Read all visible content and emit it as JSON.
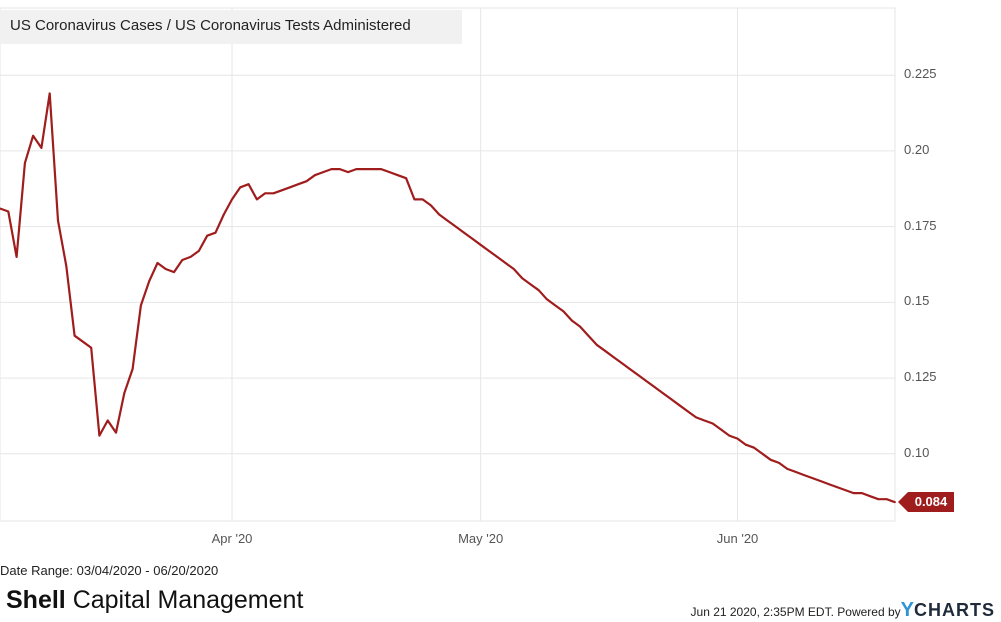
{
  "chart_data": {
    "type": "line",
    "title": "US Coronavirus Cases / US Coronavirus Tests Administered",
    "series": [
      {
        "name": "US Coronavirus Cases / US Coronavirus Tests Administered",
        "color": "#a01d1d",
        "points": [
          [
            "2020-03-04",
            0.181
          ],
          [
            "2020-03-05",
            0.18
          ],
          [
            "2020-03-06",
            0.165
          ],
          [
            "2020-03-07",
            0.196
          ],
          [
            "2020-03-08",
            0.205
          ],
          [
            "2020-03-09",
            0.201
          ],
          [
            "2020-03-10",
            0.219
          ],
          [
            "2020-03-11",
            0.177
          ],
          [
            "2020-03-12",
            0.162
          ],
          [
            "2020-03-13",
            0.139
          ],
          [
            "2020-03-14",
            0.137
          ],
          [
            "2020-03-15",
            0.135
          ],
          [
            "2020-03-16",
            0.106
          ],
          [
            "2020-03-17",
            0.111
          ],
          [
            "2020-03-18",
            0.107
          ],
          [
            "2020-03-19",
            0.12
          ],
          [
            "2020-03-20",
            0.128
          ],
          [
            "2020-03-21",
            0.149
          ],
          [
            "2020-03-22",
            0.157
          ],
          [
            "2020-03-23",
            0.163
          ],
          [
            "2020-03-24",
            0.161
          ],
          [
            "2020-03-25",
            0.16
          ],
          [
            "2020-03-26",
            0.164
          ],
          [
            "2020-03-27",
            0.165
          ],
          [
            "2020-03-28",
            0.167
          ],
          [
            "2020-03-29",
            0.172
          ],
          [
            "2020-03-30",
            0.173
          ],
          [
            "2020-03-31",
            0.179
          ],
          [
            "2020-04-01",
            0.184
          ],
          [
            "2020-04-02",
            0.188
          ],
          [
            "2020-04-03",
            0.189
          ],
          [
            "2020-04-04",
            0.184
          ],
          [
            "2020-04-05",
            0.186
          ],
          [
            "2020-04-06",
            0.186
          ],
          [
            "2020-04-07",
            0.187
          ],
          [
            "2020-04-08",
            0.188
          ],
          [
            "2020-04-09",
            0.189
          ],
          [
            "2020-04-10",
            0.19
          ],
          [
            "2020-04-11",
            0.192
          ],
          [
            "2020-04-12",
            0.193
          ],
          [
            "2020-04-13",
            0.194
          ],
          [
            "2020-04-14",
            0.194
          ],
          [
            "2020-04-15",
            0.193
          ],
          [
            "2020-04-16",
            0.194
          ],
          [
            "2020-04-17",
            0.194
          ],
          [
            "2020-04-18",
            0.194
          ],
          [
            "2020-04-19",
            0.194
          ],
          [
            "2020-04-20",
            0.193
          ],
          [
            "2020-04-21",
            0.192
          ],
          [
            "2020-04-22",
            0.191
          ],
          [
            "2020-04-23",
            0.184
          ],
          [
            "2020-04-24",
            0.184
          ],
          [
            "2020-04-25",
            0.182
          ],
          [
            "2020-04-26",
            0.179
          ],
          [
            "2020-04-27",
            0.177
          ],
          [
            "2020-04-28",
            0.175
          ],
          [
            "2020-04-29",
            0.173
          ],
          [
            "2020-04-30",
            0.171
          ],
          [
            "2020-05-01",
            0.169
          ],
          [
            "2020-05-02",
            0.167
          ],
          [
            "2020-05-03",
            0.165
          ],
          [
            "2020-05-04",
            0.163
          ],
          [
            "2020-05-05",
            0.161
          ],
          [
            "2020-05-06",
            0.158
          ],
          [
            "2020-05-07",
            0.156
          ],
          [
            "2020-05-08",
            0.154
          ],
          [
            "2020-05-09",
            0.151
          ],
          [
            "2020-05-10",
            0.149
          ],
          [
            "2020-05-11",
            0.147
          ],
          [
            "2020-05-12",
            0.144
          ],
          [
            "2020-05-13",
            0.142
          ],
          [
            "2020-05-14",
            0.139
          ],
          [
            "2020-05-15",
            0.136
          ],
          [
            "2020-05-16",
            0.134
          ],
          [
            "2020-05-17",
            0.132
          ],
          [
            "2020-05-18",
            0.13
          ],
          [
            "2020-05-19",
            0.128
          ],
          [
            "2020-05-20",
            0.126
          ],
          [
            "2020-05-21",
            0.124
          ],
          [
            "2020-05-22",
            0.122
          ],
          [
            "2020-05-23",
            0.12
          ],
          [
            "2020-05-24",
            0.118
          ],
          [
            "2020-05-25",
            0.116
          ],
          [
            "2020-05-26",
            0.114
          ],
          [
            "2020-05-27",
            0.112
          ],
          [
            "2020-05-28",
            0.111
          ],
          [
            "2020-05-29",
            0.11
          ],
          [
            "2020-05-30",
            0.108
          ],
          [
            "2020-05-31",
            0.106
          ],
          [
            "2020-06-01",
            0.105
          ],
          [
            "2020-06-02",
            0.103
          ],
          [
            "2020-06-03",
            0.102
          ],
          [
            "2020-06-04",
            0.1
          ],
          [
            "2020-06-05",
            0.098
          ],
          [
            "2020-06-06",
            0.097
          ],
          [
            "2020-06-07",
            0.095
          ],
          [
            "2020-06-08",
            0.094
          ],
          [
            "2020-06-09",
            0.093
          ],
          [
            "2020-06-10",
            0.092
          ],
          [
            "2020-06-11",
            0.091
          ],
          [
            "2020-06-12",
            0.09
          ],
          [
            "2020-06-13",
            0.089
          ],
          [
            "2020-06-14",
            0.088
          ],
          [
            "2020-06-15",
            0.087
          ],
          [
            "2020-06-16",
            0.087
          ],
          [
            "2020-06-17",
            0.086
          ],
          [
            "2020-06-18",
            0.085
          ],
          [
            "2020-06-19",
            0.085
          ],
          [
            "2020-06-20",
            0.084
          ]
        ]
      }
    ],
    "x_ticks": [
      {
        "date": "2020-04-01",
        "label": "Apr '20"
      },
      {
        "date": "2020-05-01",
        "label": "May '20"
      },
      {
        "date": "2020-06-01",
        "label": "Jun '20"
      }
    ],
    "x_range": [
      "2020-03-04",
      "2020-06-20"
    ],
    "y_ticks": [
      {
        "value": 0.1,
        "label": "0.10"
      },
      {
        "value": 0.125,
        "label": "0.125"
      },
      {
        "value": 0.15,
        "label": "0.15"
      },
      {
        "value": 0.175,
        "label": "0.175"
      },
      {
        "value": 0.2,
        "label": "0.20"
      },
      {
        "value": 0.225,
        "label": "0.225"
      }
    ],
    "ylim": [
      0.0778,
      0.2472
    ],
    "y_axis_side": "right",
    "grid": true,
    "last_value_label": "0.084",
    "legend_placement": "top-left"
  },
  "footer": {
    "date_range": "Date Range: 03/04/2020 - 06/20/2020",
    "brand_bold": "Shell",
    "brand_rest": " Capital Management",
    "timestamp": "Jun 21 2020, 2:35PM EDT.",
    "powered_by": "Powered by",
    "ycharts_y": "Y",
    "ycharts_rest": "CHARTS"
  },
  "colors": {
    "line": "#a01d1d",
    "grid": "#e6e6e6",
    "legend_bg": "#f1f1f1",
    "ycharts_blue": "#2f93d5"
  }
}
